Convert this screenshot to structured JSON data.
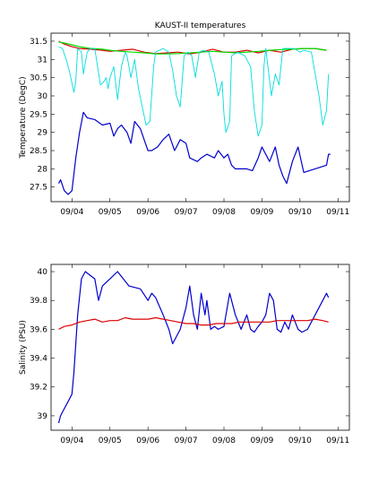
{
  "chart_data": [
    {
      "type": "line",
      "title": "KAUST-II temperatures",
      "xlabel": "",
      "ylabel": "Temperature (DegC)",
      "ylim": [
        27.1,
        31.72
      ],
      "xlim": [
        -0.55,
        7.3
      ],
      "xtick_values": [
        0,
        1,
        2,
        3,
        4,
        5,
        6,
        7
      ],
      "xtick_labels": [
        "09/04",
        "09/05",
        "09/06",
        "09/07",
        "09/08",
        "09/09",
        "09/10",
        "09/11"
      ],
      "ytick_values": [
        27.5,
        28,
        28.5,
        29,
        29.5,
        30,
        30.5,
        31,
        31.5
      ],
      "ytick_labels": [
        "27.5",
        "28",
        "28.5",
        "29",
        "29.5",
        "30",
        "30.5",
        "31",
        "31.5"
      ],
      "grid": false,
      "series": [
        {
          "color": "#dd0000",
          "x": [
            -0.35,
            -0.2,
            0,
            0.2,
            0.5,
            0.8,
            1.0,
            1.3,
            1.6,
            1.9,
            2.2,
            2.5,
            2.8,
            3.1,
            3.4,
            3.7,
            4.0,
            4.3,
            4.6,
            4.9,
            5.2,
            5.5,
            5.8,
            6.1,
            6.4,
            6.7
          ],
          "y": [
            31.5,
            31.42,
            31.35,
            31.3,
            31.28,
            31.25,
            31.22,
            31.25,
            31.28,
            31.2,
            31.16,
            31.18,
            31.2,
            31.15,
            31.2,
            31.28,
            31.2,
            31.2,
            31.25,
            31.18,
            31.25,
            31.2,
            31.28,
            31.3,
            31.3,
            31.25
          ]
        },
        {
          "color": "#00dd00",
          "x": [
            -0.35,
            -0.2,
            0,
            0.2,
            0.5,
            0.8,
            1.0,
            1.3,
            1.6,
            1.9,
            2.2,
            2.5,
            2.8,
            3.1,
            3.4,
            3.7,
            4.0,
            4.3,
            4.6,
            4.9,
            5.2,
            5.5,
            5.8,
            6.1,
            6.4,
            6.7
          ],
          "y": [
            31.48,
            31.45,
            31.4,
            31.35,
            31.3,
            31.28,
            31.25,
            31.22,
            31.2,
            31.18,
            31.15,
            31.15,
            31.16,
            31.18,
            31.2,
            31.22,
            31.2,
            31.18,
            31.2,
            31.22,
            31.25,
            31.27,
            31.28,
            31.3,
            31.3,
            31.25
          ]
        },
        {
          "color": "#00dddd",
          "x": [
            -0.35,
            -0.25,
            -0.15,
            -0.05,
            0.05,
            0.1,
            0.15,
            0.25,
            0.3,
            0.4,
            0.5,
            0.6,
            0.75,
            0.85,
            0.9,
            0.95,
            1.0,
            1.1,
            1.2,
            1.3,
            1.4,
            1.45,
            1.55,
            1.65,
            1.75,
            1.85,
            1.95,
            2.05,
            2.15,
            2.2,
            2.4,
            2.55,
            2.65,
            2.75,
            2.85,
            2.95,
            3.05,
            3.15,
            3.25,
            3.35,
            3.45,
            3.6,
            3.75,
            3.85,
            3.95,
            4.0,
            4.05,
            4.15,
            4.2,
            4.35,
            4.55,
            4.7,
            4.8,
            4.9,
            5.0,
            5.05,
            5.1,
            5.25,
            5.35,
            5.45,
            5.55,
            5.7,
            5.85,
            6.0,
            6.1,
            6.3,
            6.5,
            6.6,
            6.7,
            6.75
          ],
          "y": [
            31.35,
            31.3,
            31.0,
            30.6,
            30.1,
            30.4,
            31.3,
            31.2,
            30.6,
            31.2,
            31.3,
            31.3,
            30.3,
            30.4,
            30.5,
            30.2,
            30.5,
            30.8,
            29.9,
            30.8,
            31.2,
            31.1,
            30.5,
            31.0,
            30.2,
            29.7,
            29.2,
            29.3,
            30.8,
            31.2,
            31.3,
            31.2,
            30.7,
            30.0,
            29.7,
            31.1,
            31.2,
            31.1,
            30.5,
            31.2,
            31.25,
            31.2,
            30.6,
            30.0,
            30.4,
            29.5,
            29.0,
            29.3,
            31.1,
            31.2,
            31.1,
            30.8,
            29.6,
            28.9,
            29.2,
            30.8,
            31.3,
            30.0,
            30.6,
            30.3,
            31.3,
            31.3,
            31.3,
            31.2,
            31.25,
            31.2,
            30.0,
            29.2,
            29.6,
            30.6
          ]
        },
        {
          "color": "#0000cc",
          "x": [
            -0.35,
            -0.3,
            -0.2,
            -0.1,
            0.0,
            0.1,
            0.2,
            0.3,
            0.4,
            0.6,
            0.8,
            1.0,
            1.1,
            1.2,
            1.3,
            1.45,
            1.55,
            1.65,
            1.8,
            1.9,
            2.0,
            2.1,
            2.25,
            2.4,
            2.55,
            2.7,
            2.85,
            3.0,
            3.1,
            3.3,
            3.4,
            3.55,
            3.75,
            3.85,
            4.0,
            4.1,
            4.2,
            4.3,
            4.45,
            4.6,
            4.75,
            4.9,
            5.0,
            5.2,
            5.35,
            5.45,
            5.55,
            5.65,
            5.8,
            5.95,
            6.1,
            6.7,
            6.75,
            6.8
          ],
          "y": [
            27.6,
            27.7,
            27.4,
            27.3,
            27.4,
            28.3,
            29.0,
            29.55,
            29.4,
            29.35,
            29.2,
            29.25,
            28.9,
            29.1,
            29.2,
            29.0,
            28.7,
            29.3,
            29.1,
            28.8,
            28.5,
            28.5,
            28.6,
            28.8,
            28.95,
            28.5,
            28.8,
            28.7,
            28.3,
            28.2,
            28.3,
            28.4,
            28.3,
            28.5,
            28.3,
            28.4,
            28.1,
            28.0,
            28.0,
            28.0,
            27.95,
            28.3,
            28.6,
            28.2,
            28.6,
            28.1,
            27.8,
            27.6,
            28.2,
            28.6,
            27.9,
            28.1,
            28.4,
            28.4
          ]
        }
      ]
    },
    {
      "type": "line",
      "title": "",
      "xlabel": "",
      "ylabel": "Salinity (PSU)",
      "ylim": [
        38.9,
        40.05
      ],
      "xlim": [
        -0.55,
        7.3
      ],
      "xtick_values": [
        0,
        1,
        2,
        3,
        4,
        5,
        6,
        7
      ],
      "xtick_labels": [
        "09/04",
        "09/05",
        "09/06",
        "09/07",
        "09/08",
        "09/09",
        "09/10",
        "09/11"
      ],
      "ytick_values": [
        39,
        39.2,
        39.4,
        39.6,
        39.8,
        40
      ],
      "ytick_labels": [
        "39",
        "39.2",
        "39.4",
        "39.6",
        "39.8",
        "40"
      ],
      "grid": false,
      "series": [
        {
          "color": "#0000cc",
          "x": [
            -0.35,
            -0.3,
            -0.2,
            -0.1,
            0.0,
            0.05,
            0.15,
            0.25,
            0.35,
            0.5,
            0.6,
            0.7,
            0.8,
            1.0,
            1.2,
            1.5,
            1.8,
            2.0,
            2.1,
            2.2,
            2.4,
            2.55,
            2.65,
            2.75,
            2.85,
            3.0,
            3.1,
            3.2,
            3.3,
            3.4,
            3.5,
            3.55,
            3.65,
            3.75,
            3.85,
            4.0,
            4.15,
            4.3,
            4.45,
            4.6,
            4.7,
            4.8,
            4.9,
            5.0,
            5.1,
            5.2,
            5.3,
            5.4,
            5.5,
            5.6,
            5.7,
            5.8,
            5.95,
            6.05,
            6.2,
            6.4,
            6.6,
            6.7,
            6.75
          ],
          "y": [
            38.95,
            39.0,
            39.05,
            39.1,
            39.15,
            39.3,
            39.7,
            39.95,
            40.0,
            39.97,
            39.95,
            39.8,
            39.9,
            39.95,
            40.0,
            39.9,
            39.88,
            39.8,
            39.85,
            39.82,
            39.7,
            39.6,
            39.5,
            39.55,
            39.6,
            39.75,
            39.9,
            39.7,
            39.6,
            39.85,
            39.7,
            39.8,
            39.6,
            39.62,
            39.6,
            39.62,
            39.85,
            39.7,
            39.6,
            39.7,
            39.6,
            39.58,
            39.62,
            39.65,
            39.7,
            39.85,
            39.8,
            39.6,
            39.58,
            39.65,
            39.6,
            39.7,
            39.6,
            39.58,
            39.6,
            39.7,
            39.8,
            39.85,
            39.82
          ]
        },
        {
          "color": "#dd0000",
          "x": [
            -0.35,
            -0.2,
            0.0,
            0.2,
            0.4,
            0.6,
            0.8,
            1.0,
            1.2,
            1.4,
            1.6,
            1.8,
            2.0,
            2.2,
            2.4,
            2.6,
            2.8,
            3.0,
            3.2,
            3.4,
            3.6,
            3.8,
            4.0,
            4.2,
            4.4,
            4.6,
            4.8,
            5.0,
            5.2,
            5.4,
            5.6,
            5.8,
            6.0,
            6.2,
            6.4,
            6.6,
            6.75
          ],
          "y": [
            39.6,
            39.62,
            39.63,
            39.65,
            39.66,
            39.67,
            39.65,
            39.66,
            39.66,
            39.68,
            39.67,
            39.67,
            39.67,
            39.68,
            39.67,
            39.66,
            39.65,
            39.64,
            39.64,
            39.63,
            39.63,
            39.64,
            39.64,
            39.64,
            39.65,
            39.65,
            39.65,
            39.65,
            39.65,
            39.66,
            39.66,
            39.66,
            39.66,
            39.66,
            39.67,
            39.66,
            39.65
          ]
        }
      ]
    }
  ]
}
